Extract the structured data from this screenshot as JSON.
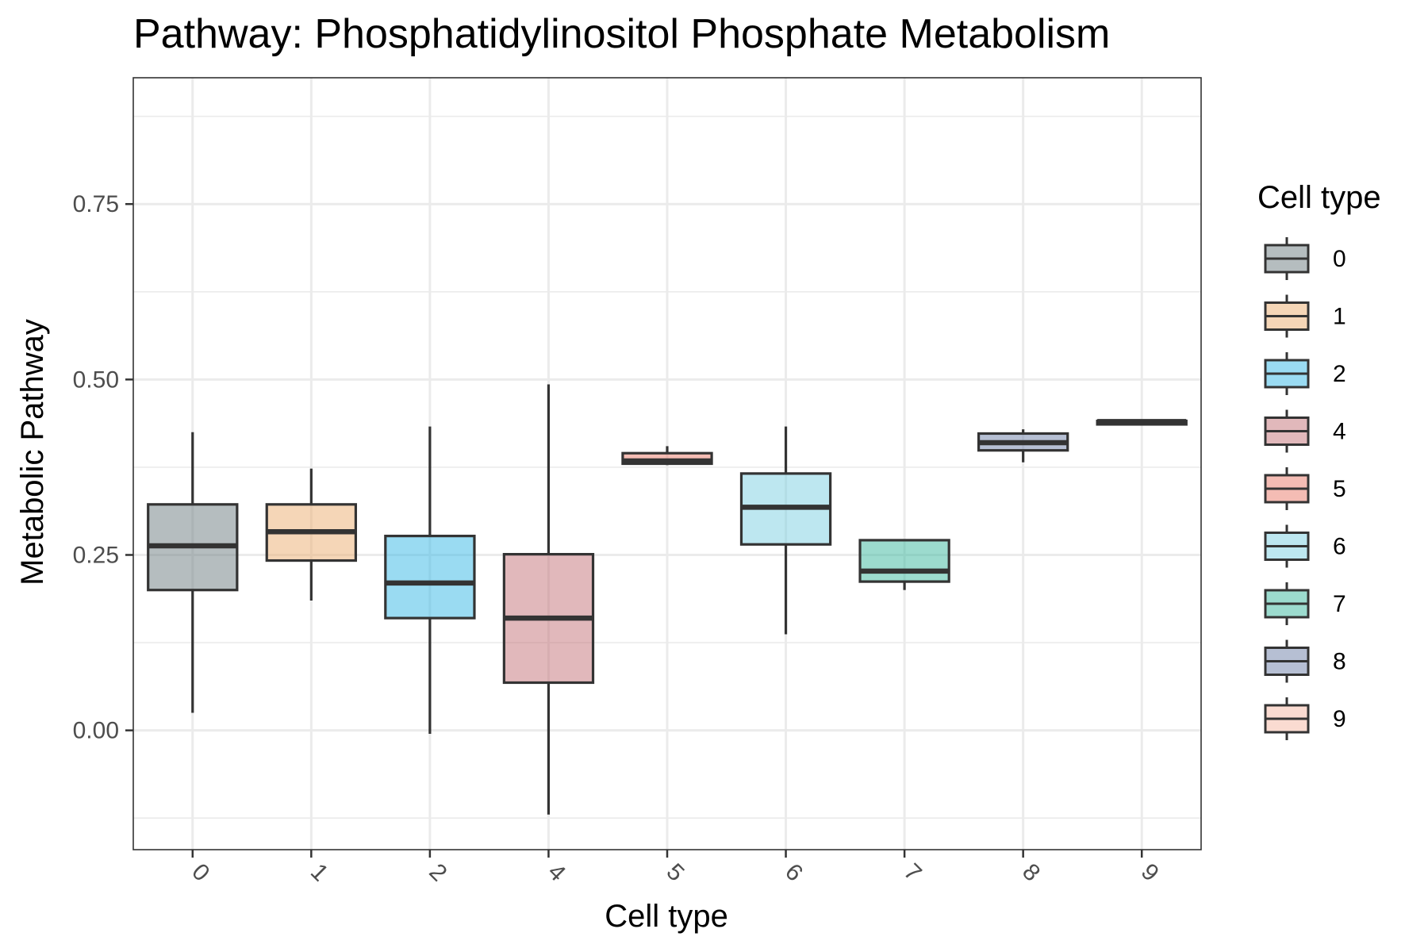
{
  "chart_data": {
    "type": "box",
    "title": "Pathway: Phosphatidylinositol Phosphate Metabolism",
    "xlabel": "Cell type",
    "ylabel": "Metabolic Pathway",
    "ylim": [
      -0.17,
      0.93
    ],
    "yticks": [
      0.0,
      0.25,
      0.5,
      0.75
    ],
    "ytick_labels": [
      "0.00",
      "0.25",
      "0.50",
      "0.75"
    ],
    "grid": true,
    "legend": {
      "title": "Cell type",
      "position": "right"
    },
    "categories": [
      "0",
      "1",
      "2",
      "4",
      "5",
      "6",
      "7",
      "8",
      "9"
    ],
    "boxes": [
      {
        "category": "0",
        "whisker_low": 0.025,
        "q1": 0.2,
        "median": 0.263,
        "q3": 0.322,
        "whisker_high": 0.425,
        "color": "#6c7b80"
      },
      {
        "category": "1",
        "whisker_low": 0.185,
        "q1": 0.242,
        "median": 0.283,
        "q3": 0.322,
        "whisker_high": 0.373,
        "color": "#ebae70"
      },
      {
        "category": "2",
        "whisker_low": -0.005,
        "q1": 0.16,
        "median": 0.21,
        "q3": 0.277,
        "whisker_high": 0.433,
        "color": "#36b8e5"
      },
      {
        "category": "4",
        "whisker_low": -0.12,
        "q1": 0.068,
        "median": 0.16,
        "q3": 0.251,
        "whisker_high": 0.493,
        "color": "#c37278"
      },
      {
        "category": "5",
        "whisker_low": 0.378,
        "q1": 0.38,
        "median": 0.384,
        "q3": 0.395,
        "whisker_high": 0.405,
        "color": "#ea7a6a"
      },
      {
        "category": "6",
        "whisker_low": 0.137,
        "q1": 0.265,
        "median": 0.318,
        "q3": 0.366,
        "whisker_high": 0.433,
        "color": "#7bd0e2"
      },
      {
        "category": "7",
        "whisker_low": 0.2,
        "q1": 0.212,
        "median": 0.227,
        "q3": 0.271,
        "whisker_high": 0.271,
        "color": "#3ab89d"
      },
      {
        "category": "8",
        "whisker_low": 0.382,
        "q1": 0.399,
        "median": 0.41,
        "q3": 0.423,
        "whisker_high": 0.429,
        "color": "#6e80a8"
      },
      {
        "category": "9",
        "whisker_low": 0.436,
        "q1": 0.436,
        "median": 0.44,
        "q3": 0.441,
        "whisker_high": 0.441,
        "color": "#f5b7a3"
      }
    ]
  }
}
